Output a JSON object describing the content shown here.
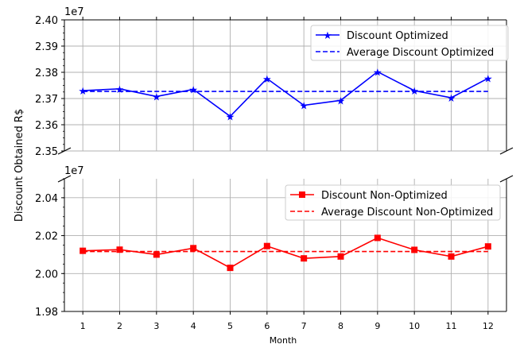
{
  "chart_data": [
    {
      "type": "line",
      "panel": "top",
      "title": "",
      "xlabel": "",
      "ylabel": "Discount Obtained R$",
      "offset_label": "1e7",
      "x": [
        1,
        2,
        3,
        4,
        5,
        6,
        7,
        8,
        9,
        10,
        11,
        12
      ],
      "xlim": [
        0.5,
        12.5
      ],
      "ylim": [
        2.35,
        2.4
      ],
      "yticks": [
        "2.35",
        "2.36",
        "2.37",
        "2.38",
        "2.39",
        "2.40"
      ],
      "grid": true,
      "legend_position": "upper-right",
      "series": [
        {
          "name": "Discount Optimized",
          "color": "#0000ff",
          "marker": "star",
          "linestyle": "solid",
          "values": [
            2.373,
            2.3737,
            2.3708,
            2.3735,
            2.3632,
            2.3776,
            2.3674,
            2.3693,
            2.3802,
            2.373,
            2.3703,
            2.3777
          ]
        },
        {
          "name": "Average Discount Optimized",
          "color": "#0000ff",
          "linestyle": "dashed",
          "values": [
            2.3727,
            2.3727,
            2.3727,
            2.3727,
            2.3727,
            2.3727,
            2.3727,
            2.3727,
            2.3727,
            2.3727,
            2.3727,
            2.3727
          ]
        }
      ]
    },
    {
      "type": "line",
      "panel": "bottom",
      "title": "",
      "xlabel": "Month",
      "ylabel": "Discount Obtained R$",
      "offset_label": "1e7",
      "x": [
        1,
        2,
        3,
        4,
        5,
        6,
        7,
        8,
        9,
        10,
        11,
        12
      ],
      "xticks": [
        "1",
        "2",
        "3",
        "4",
        "5",
        "6",
        "7",
        "8",
        "9",
        "10",
        "11",
        "12"
      ],
      "xlim": [
        0.5,
        12.5
      ],
      "ylim": [
        1.98,
        2.05
      ],
      "yticks": [
        "1.98",
        "2.00",
        "2.02",
        "2.04"
      ],
      "grid": true,
      "legend_position": "upper-right",
      "series": [
        {
          "name": "Discount Non-Optimized",
          "color": "#ff0000",
          "marker": "square",
          "linestyle": "solid",
          "values": [
            2.012,
            2.0126,
            2.01,
            2.0134,
            2.003,
            2.0145,
            2.008,
            2.009,
            2.0188,
            2.0125,
            2.009,
            2.0143
          ]
        },
        {
          "name": "Average Discount Non-Optimized",
          "color": "#ff0000",
          "linestyle": "dashed",
          "values": [
            2.0116,
            2.0116,
            2.0116,
            2.0116,
            2.0116,
            2.0116,
            2.0116,
            2.0116,
            2.0116,
            2.0116,
            2.0116,
            2.0116
          ]
        }
      ]
    }
  ]
}
